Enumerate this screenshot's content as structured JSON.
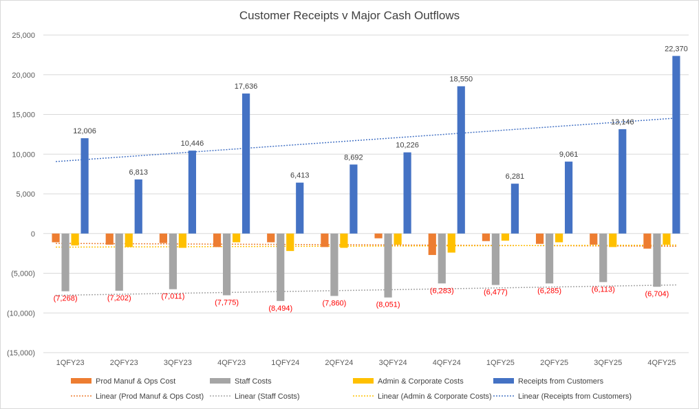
{
  "chart_data": {
    "type": "bar",
    "title": "Customer Receipts v Major Cash Outflows",
    "categories": [
      "1QFY23",
      "2QFY23",
      "3QFY23",
      "4QFY23",
      "1QFY24",
      "2QFY24",
      "3QFY24",
      "4QFY24",
      "1QFY25",
      "2QFY25",
      "3QFY25",
      "4QFY25"
    ],
    "ylim": [
      -15000,
      25000
    ],
    "yticks": [
      25000,
      20000,
      15000,
      10000,
      5000,
      0,
      -5000,
      -10000,
      -15000
    ],
    "ytick_labels": [
      "25,000",
      "20,000",
      "15,000",
      "10,000",
      "5,000",
      "0",
      "(5,000)",
      "(10,000)",
      "(15,000)"
    ],
    "grid": true,
    "legend_position": "bottom",
    "series": [
      {
        "name": "Prod Manuf & Ops Cost",
        "color": "#ED7D31",
        "values": [
          -1100,
          -1400,
          -1200,
          -1700,
          -1100,
          -1700,
          -600,
          -2700,
          -950,
          -1300,
          -1400,
          -1900
        ]
      },
      {
        "name": "Staff Costs",
        "color": "#A5A5A5",
        "values": [
          -7268,
          -7202,
          -7011,
          -7775,
          -8494,
          -7860,
          -8051,
          -6283,
          -6477,
          -6285,
          -6113,
          -6704
        ],
        "labels": [
          "(7,268)",
          "(7,202)",
          "(7,011)",
          "(7,775)",
          "(8,494)",
          "(7,860)",
          "(8,051)",
          "(6,283)",
          "(6,477)",
          "(6,285)",
          "(6,113)",
          "(6,704)"
        ],
        "label_color": "#FF0000"
      },
      {
        "name": "Admin & Corporate Costs",
        "color": "#FFC000",
        "values": [
          -1500,
          -1700,
          -1800,
          -1100,
          -2200,
          -1800,
          -1400,
          -2400,
          -900,
          -1100,
          -1700,
          -1400
        ]
      },
      {
        "name": "Receipts from Customers",
        "color": "#4472C4",
        "values": [
          12006,
          6813,
          10446,
          17636,
          6413,
          8692,
          10226,
          18550,
          6281,
          9061,
          13146,
          22370
        ],
        "labels": [
          "12,006",
          "6,813",
          "10,446",
          "17,636",
          "6,413",
          "8,692",
          "10,226",
          "18,550",
          "6,281",
          "9,061",
          "13,146",
          "22,370"
        ],
        "label_color": "#404040"
      }
    ],
    "trendlines": [
      {
        "name": "Linear (Prod Manuf & Ops Cost)",
        "series": 0,
        "color": "#ED7D31"
      },
      {
        "name": "Linear (Staff Costs)",
        "series": 1,
        "color": "#A5A5A5"
      },
      {
        "name": "Linear (Admin & Corporate Costs)",
        "series": 2,
        "color": "#FFC000"
      },
      {
        "name": "Linear (Receipts from Customers)",
        "series": 3,
        "color": "#4472C4"
      }
    ]
  }
}
